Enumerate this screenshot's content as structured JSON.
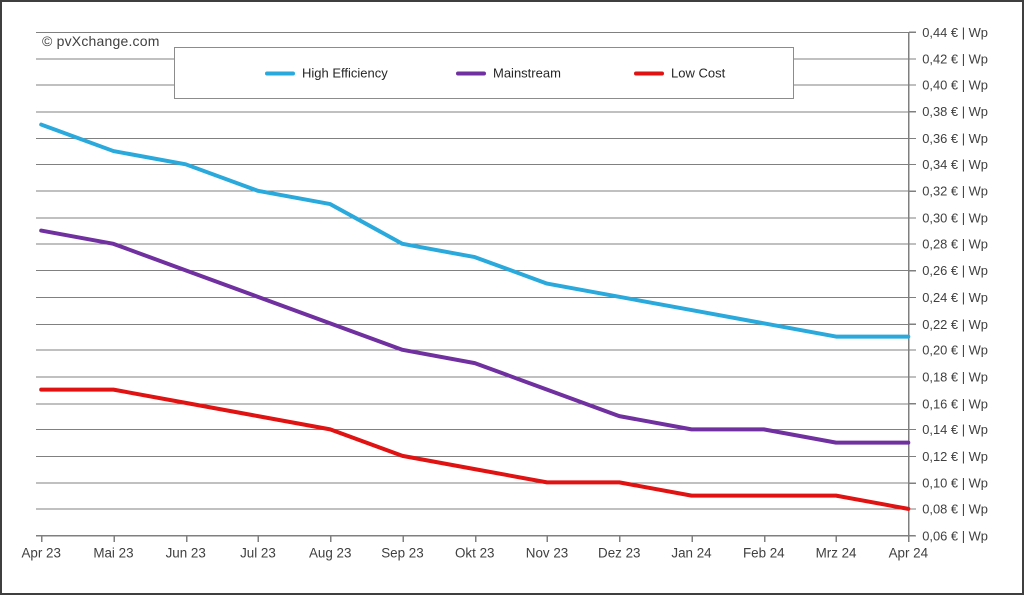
{
  "watermark": "© pvXchange.com",
  "colors": {
    "background": "#ffffff",
    "frame_border": "#3f3f3f",
    "gridline": "#808080",
    "axis": "#7f7f7f",
    "tick_text": "#404040",
    "legend_border": "#8c8c8c",
    "high_efficiency": "#29a9dc",
    "mainstream": "#7030a0",
    "low_cost": "#e01212"
  },
  "legend": {
    "items": [
      {
        "label": "High Efficiency",
        "color": "#29a9dc"
      },
      {
        "label": "Mainstream",
        "color": "#7030a0"
      },
      {
        "label": "Low Cost",
        "color": "#e01212"
      }
    ]
  },
  "chart_data": {
    "type": "line",
    "title": "",
    "xlabel": "",
    "ylabel": "",
    "categories": [
      "Apr 23",
      "Mai 23",
      "Jun 23",
      "Jul 23",
      "Aug 23",
      "Sep 23",
      "Okt 23",
      "Nov 23",
      "Dez 23",
      "Jan 24",
      "Feb 24",
      "Mrz 24",
      "Apr 24"
    ],
    "series": [
      {
        "name": "High Efficiency",
        "color": "#29a9dc",
        "values": [
          0.37,
          0.35,
          0.34,
          0.32,
          0.31,
          0.28,
          0.27,
          0.25,
          0.24,
          0.23,
          0.22,
          0.21,
          0.21
        ]
      },
      {
        "name": "Mainstream",
        "color": "#7030a0",
        "values": [
          0.29,
          0.28,
          0.26,
          0.24,
          0.22,
          0.2,
          0.19,
          0.17,
          0.15,
          0.14,
          0.14,
          0.13,
          0.13
        ]
      },
      {
        "name": "Low Cost",
        "color": "#e01212",
        "values": [
          0.17,
          0.17,
          0.16,
          0.15,
          0.14,
          0.12,
          0.11,
          0.1,
          0.1,
          0.09,
          0.09,
          0.09,
          0.08
        ]
      }
    ],
    "ylim": [
      0.06,
      0.44
    ],
    "ytick_step": 0.02,
    "ytick_format": "{value} € | Wp",
    "decimal_separator": ",",
    "grid": true,
    "legend_position": "top-center",
    "unit": "€ | Wp"
  }
}
